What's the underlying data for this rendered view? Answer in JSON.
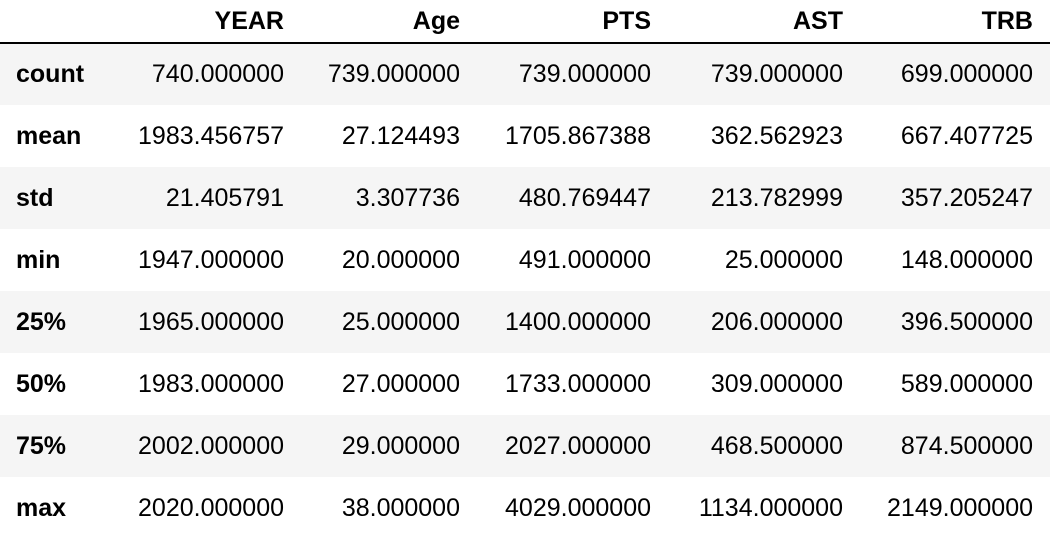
{
  "table": {
    "columns": [
      "",
      "YEAR",
      "Age",
      "PTS",
      "AST",
      "TRB"
    ],
    "rows": [
      {
        "label": "count",
        "values": [
          "740.000000",
          "739.000000",
          "739.000000",
          "739.000000",
          "699.000000"
        ]
      },
      {
        "label": "mean",
        "values": [
          "1983.456757",
          "27.124493",
          "1705.867388",
          "362.562923",
          "667.407725"
        ]
      },
      {
        "label": "std",
        "values": [
          "21.405791",
          "3.307736",
          "480.769447",
          "213.782999",
          "357.205247"
        ]
      },
      {
        "label": "min",
        "values": [
          "1947.000000",
          "20.000000",
          "491.000000",
          "25.000000",
          "148.000000"
        ]
      },
      {
        "label": "25%",
        "values": [
          "1965.000000",
          "25.000000",
          "1400.000000",
          "206.000000",
          "396.500000"
        ]
      },
      {
        "label": "50%",
        "values": [
          "1983.000000",
          "27.000000",
          "1733.000000",
          "309.000000",
          "589.000000"
        ]
      },
      {
        "label": "75%",
        "values": [
          "2002.000000",
          "29.000000",
          "2027.000000",
          "468.500000",
          "874.500000"
        ]
      },
      {
        "label": "max",
        "values": [
          "2020.000000",
          "38.000000",
          "4029.000000",
          "1134.000000",
          "2149.000000"
        ]
      }
    ]
  }
}
